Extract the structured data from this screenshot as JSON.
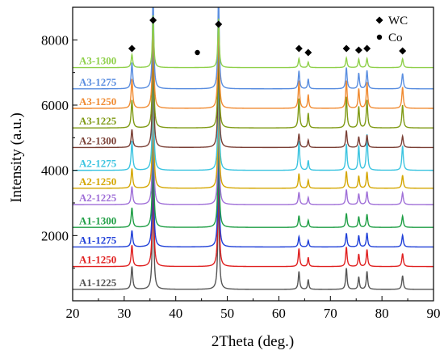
{
  "chart_data": {
    "type": "line",
    "xlabel": "2Theta (deg.)",
    "ylabel": "Intensity (a.u.)",
    "xlim": [
      20,
      90
    ],
    "ylim": [
      0,
      9000
    ],
    "x_ticks": [
      "20",
      "30",
      "40",
      "50",
      "60",
      "70",
      "80",
      "90"
    ],
    "y_ticks": [
      "2000",
      "4000",
      "6000",
      "8000"
    ],
    "grid": false,
    "legend": {
      "placement": "top-right",
      "entries": [
        {
          "symbol": "diamond",
          "label": "WC"
        },
        {
          "symbol": "circle",
          "label": "Co"
        }
      ]
    },
    "peaks": {
      "wc_positions": [
        31.5,
        35.6,
        48.3,
        63.9,
        65.7,
        73.1,
        75.5,
        77.1,
        84.0
      ],
      "co_positions": [
        44.2
      ]
    },
    "series": [
      {
        "name": "A1-1225",
        "color": "#555555",
        "baseline": 350,
        "peak_heights": [
          700,
          3350,
          3150,
          550,
          300,
          650,
          380,
          550,
          420
        ],
        "co_height": 0
      },
      {
        "name": "A1-1250",
        "color": "#e02020",
        "baseline": 1050,
        "peak_heights": [
          650,
          3350,
          3150,
          550,
          280,
          600,
          380,
          520,
          400
        ],
        "co_height": 0
      },
      {
        "name": "A1-1275",
        "color": "#1f3fd8",
        "baseline": 1650,
        "peak_heights": [
          500,
          3200,
          3150,
          320,
          200,
          420,
          350,
          430,
          360
        ],
        "co_height": 0
      },
      {
        "name": "A1-1300",
        "color": "#1e9e44",
        "baseline": 2250,
        "peak_heights": [
          600,
          3150,
          3050,
          360,
          220,
          430,
          330,
          400,
          350
        ],
        "co_height": 0
      },
      {
        "name": "A2-1225",
        "color": "#a070d8",
        "baseline": 2950,
        "peak_heights": [
          550,
          3100,
          3000,
          380,
          220,
          460,
          330,
          400,
          360
        ],
        "co_height": 0
      },
      {
        "name": "A2-1250",
        "color": "#d4a600",
        "baseline": 3450,
        "peak_heights": [
          600,
          3400,
          3100,
          450,
          250,
          520,
          380,
          500,
          400
        ],
        "co_height": 0
      },
      {
        "name": "A2-1275",
        "color": "#3bc4e0",
        "baseline": 4000,
        "peak_heights": [
          900,
          3400,
          3200,
          900,
          300,
          800,
          750,
          1100,
          750
        ],
        "co_height": 0
      },
      {
        "name": "A2-1300",
        "color": "#7a3f35",
        "baseline": 4700,
        "peak_heights": [
          550,
          3350,
          3050,
          420,
          230,
          520,
          330,
          380,
          350
        ],
        "co_height": 0
      },
      {
        "name": "A3-1225",
        "color": "#7f9a14",
        "baseline": 5300,
        "peak_heights": [
          850,
          3150,
          2950,
          900,
          450,
          950,
          650,
          850,
          700
        ],
        "co_height": 0
      },
      {
        "name": "A3-1250",
        "color": "#f08a30",
        "baseline": 5900,
        "peak_heights": [
          900,
          3050,
          2850,
          850,
          420,
          850,
          600,
          800,
          650
        ],
        "co_height": 0
      },
      {
        "name": "A3-1275",
        "color": "#5a8ee0",
        "baseline": 6500,
        "peak_heights": [
          800,
          3000,
          2900,
          550,
          300,
          650,
          480,
          560,
          470
        ],
        "co_height": 0
      },
      {
        "name": "A3-1300",
        "color": "#8fd04a",
        "baseline": 7150,
        "peak_heights": [
          400,
          1600,
          1500,
          280,
          170,
          300,
          260,
          280,
          270
        ],
        "co_height": 0
      }
    ]
  }
}
